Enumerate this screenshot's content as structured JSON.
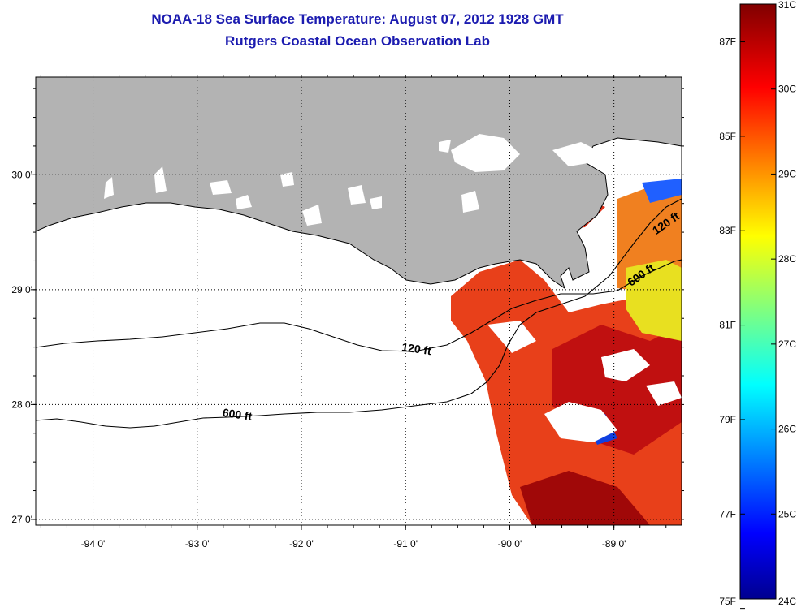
{
  "header": {
    "title": "NOAA-18 Sea Surface Temperature:  August 07, 2012 1928 GMT",
    "subtitle": "Rutgers Coastal Ocean Observation Lab"
  },
  "map": {
    "lon_range": [
      -94.55,
      -88.35
    ],
    "lat_range": [
      26.95,
      30.85
    ],
    "longitude_ticks": [
      {
        "value": -94,
        "label": "-94 0'"
      },
      {
        "value": -93,
        "label": "-93 0'"
      },
      {
        "value": -92,
        "label": "-92 0'"
      },
      {
        "value": -91,
        "label": "-91 0'"
      },
      {
        "value": -90,
        "label": "-90 0'"
      },
      {
        "value": -89,
        "label": "-89 0'"
      }
    ],
    "latitude_ticks": [
      {
        "value": 30,
        "label": "30 0'"
      },
      {
        "value": 29,
        "label": "29 0'"
      },
      {
        "value": 28,
        "label": "28 0'"
      },
      {
        "value": 27,
        "label": "27 0'"
      }
    ],
    "grid": "dotted",
    "land_color": "#b3b3b3",
    "contour_labels": [
      {
        "text": "120 ft",
        "lon": -90.9,
        "lat": 28.45
      },
      {
        "text": "600 ft",
        "lon": -92.62,
        "lat": 27.88
      },
      {
        "text": "120 ft",
        "lon": -88.48,
        "lat": 29.55
      },
      {
        "text": "600 ft",
        "lon": -88.72,
        "lat": 29.1
      }
    ]
  },
  "colorbar": {
    "min_c": 24,
    "max_c": 31,
    "celsius_ticks": [
      {
        "value": 31,
        "label": "31C"
      },
      {
        "value": 30,
        "label": "30C"
      },
      {
        "value": 29,
        "label": "29C"
      },
      {
        "value": 28,
        "label": "28C"
      },
      {
        "value": 27,
        "label": "27C"
      },
      {
        "value": 26,
        "label": "26C"
      },
      {
        "value": 25,
        "label": "25C"
      },
      {
        "value": 24,
        "label": "24C"
      }
    ],
    "fahrenheit_ticks": [
      {
        "value": 87,
        "label": "87F"
      },
      {
        "value": 85,
        "label": "85F"
      },
      {
        "value": 83,
        "label": "83F"
      },
      {
        "value": 81,
        "label": "81F"
      },
      {
        "value": 79,
        "label": "79F"
      },
      {
        "value": 77,
        "label": "77F"
      },
      {
        "value": 75,
        "label": "75F"
      }
    ]
  }
}
